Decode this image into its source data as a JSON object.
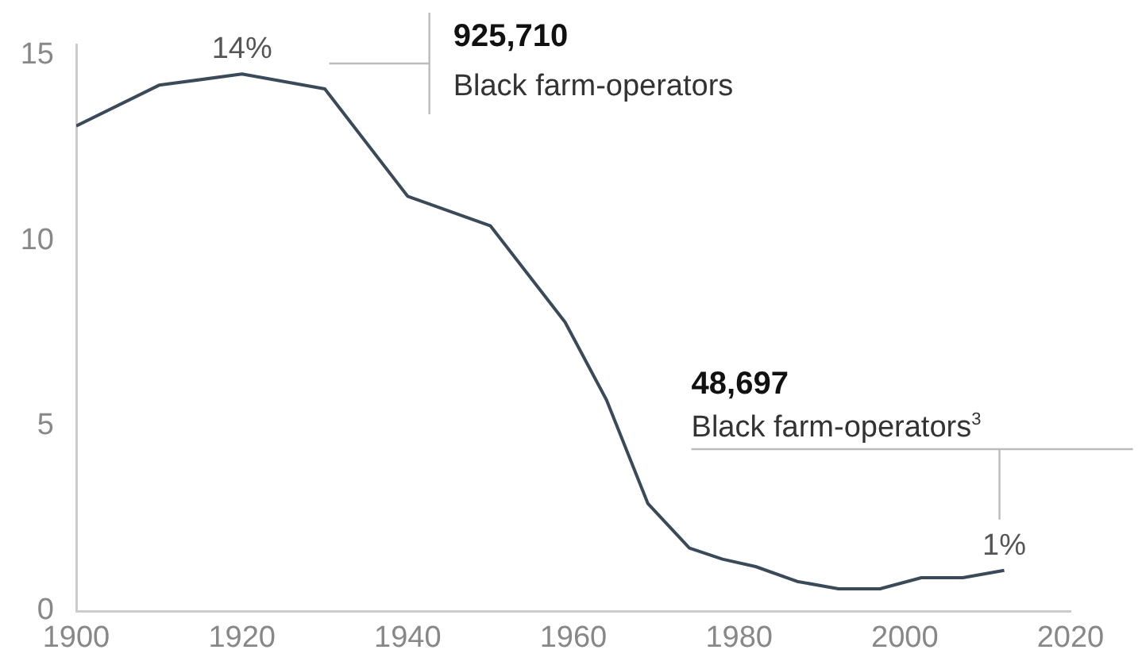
{
  "chart_data": {
    "type": "line",
    "x": [
      1900,
      1910,
      1920,
      1930,
      1940,
      1950,
      1959,
      1964,
      1969,
      1974,
      1978,
      1982,
      1987,
      1992,
      1997,
      2002,
      2007,
      2012
    ],
    "series": [
      {
        "color": "#3b4a58",
        "values": [
          13.1,
          14.2,
          14.5,
          14.1,
          11.2,
          10.4,
          7.8,
          5.7,
          2.9,
          1.7,
          1.4,
          1.2,
          0.8,
          0.6,
          0.6,
          0.9,
          0.9,
          1.1
        ]
      }
    ],
    "xlim": [
      1900,
      2020
    ],
    "xticks": [
      1900,
      1920,
      1940,
      1960,
      1980,
      2000,
      2020
    ],
    "ylim": [
      0,
      15.3
    ],
    "yticks": [
      0,
      5,
      10,
      15
    ],
    "grid": false,
    "legend": false,
    "marker": "none",
    "line_style": "solid",
    "annotations": [
      {
        "text": "14%",
        "x": 1920,
        "y": 14.5
      },
      "925,710\nBlack farm-operators",
      "48,697\nBlack farm-operators$^{3}$",
      {
        "text": "1%",
        "x": 2012,
        "y": 1.1
      }
    ]
  }
}
